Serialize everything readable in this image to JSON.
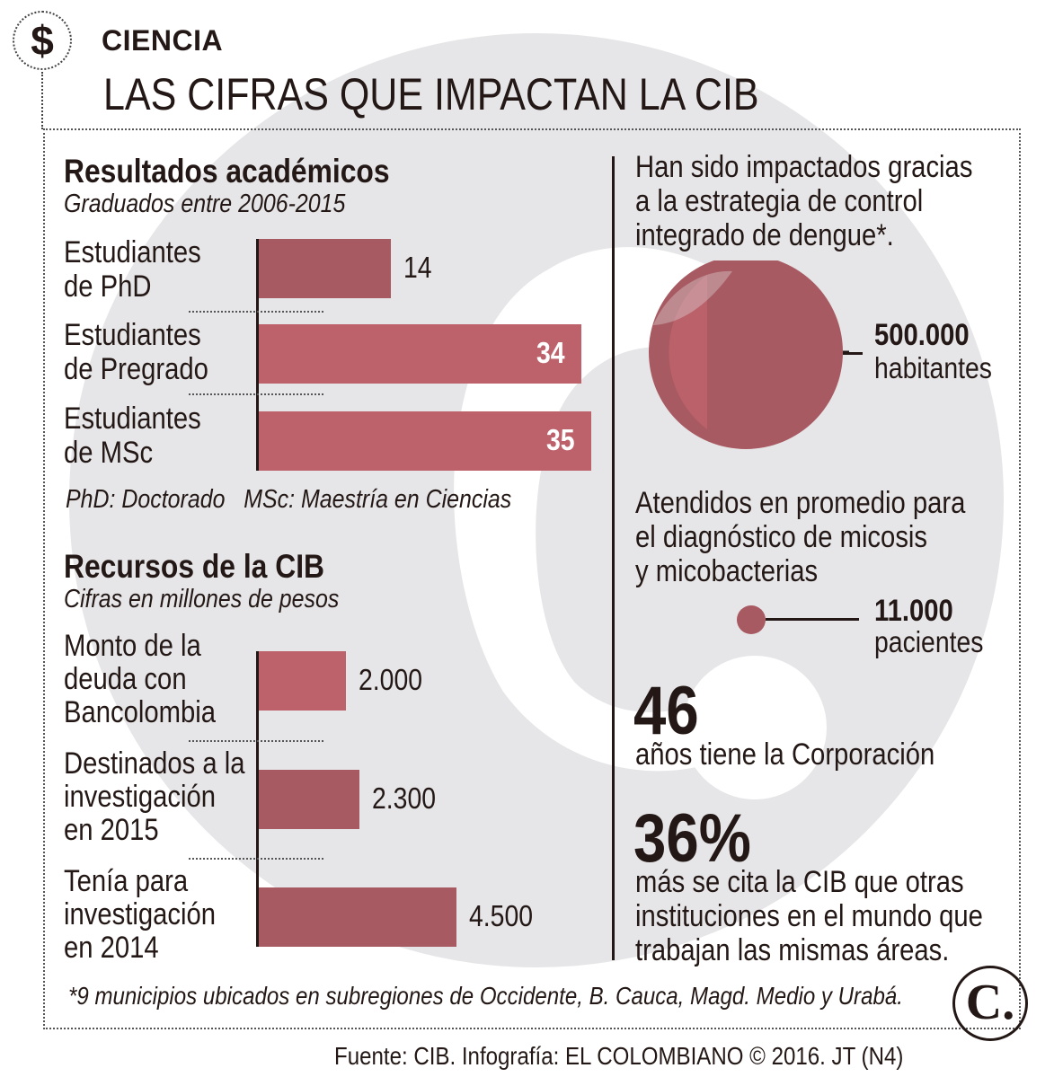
{
  "header": {
    "section": "CIENCIA",
    "title": "LAS CIFRAS QUE IMPACTAN LA CIB"
  },
  "academic": {
    "heading": "Resultados académicos",
    "subheading": "Graduados entre 2006-2015",
    "note": "PhD: Doctorado   MSc: Maestría en Ciencias"
  },
  "resources": {
    "heading": "Recursos de la CIB",
    "subheading": "Cifras en millones de pesos"
  },
  "chart_data": [
    {
      "type": "bar",
      "orientation": "horizontal",
      "title": "Resultados académicos",
      "subtitle": "Graduados entre 2006-2015",
      "categories": [
        [
          "Estudiantes",
          "de PhD"
        ],
        [
          "Estudiantes",
          "de Pregrado"
        ],
        [
          "Estudiantes",
          "de MSc"
        ]
      ],
      "values": [
        14,
        34,
        35
      ],
      "value_labels": [
        "14",
        "34",
        "35"
      ],
      "colors": [
        "#a85a62",
        "#bd626b",
        "#bd626b"
      ],
      "xlim": [
        0,
        35
      ]
    },
    {
      "type": "bar",
      "orientation": "horizontal",
      "title": "Recursos de la CIB",
      "subtitle": "Cifras en millones de pesos",
      "categories": [
        [
          "Monto de la",
          "deuda con",
          "Bancolombia"
        ],
        [
          "Destinados a la",
          "investigación",
          "en 2015"
        ],
        [
          "Tenía para",
          "investigación",
          "en 2014"
        ]
      ],
      "values": [
        2000,
        2300,
        4500
      ],
      "value_labels": [
        "2.000",
        "2.300",
        "4.500"
      ],
      "colors": [
        "#bd626b",
        "#a85a62",
        "#a85a62"
      ],
      "xlim": [
        0,
        4500
      ]
    }
  ],
  "right": {
    "dengue_text": [
      "Han sido impactados gracias",
      "a la estrategia de control",
      "integrado de dengue*."
    ],
    "dengue_value": "500.000",
    "dengue_unit": "habitantes",
    "micosis_text": [
      "Atendidos en promedio para",
      "el diagnóstico de micosis",
      "y micobacterias"
    ],
    "micosis_value": "11.000",
    "micosis_unit": "pacientes",
    "years_value": "46",
    "years_text": "años tiene la Corporación",
    "cite_value": "36%",
    "cite_text": [
      "más se cita la CIB que otras",
      "instituciones en el mundo que",
      "trabajan las mismas áreas."
    ]
  },
  "footnote": "*9 municipios ubicados en subregiones de Occidente, B. Cauca, Magd. Medio y Urabá.",
  "source": "Fuente: CIB. Infografía: EL COLOMBIANO © 2016. JT (N4)",
  "logo_letter": "C.",
  "icon": "dollar-icon",
  "colors": {
    "bar_dark": "#a85a62",
    "bar_light": "#bd626b",
    "watermark": "#e6e6e8",
    "text": "#231815"
  }
}
